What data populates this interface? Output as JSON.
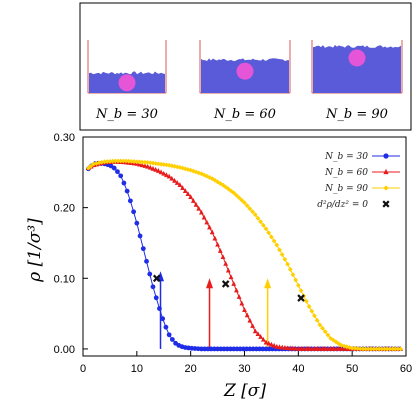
{
  "colors": {
    "nb30": "#1f2de6",
    "nb60": "#e81c1c",
    "nb90": "#ffcf00",
    "marker": "#111111",
    "polymer": "#5a5bd8",
    "particle": "#e455d8",
    "wall": "#d85a5a"
  },
  "snapshots": [
    {
      "label": "N_b = 30",
      "top_fraction": 0.35
    },
    {
      "label": "N_b = 60",
      "top_fraction": 0.6
    },
    {
      "label": "N_b = 90",
      "top_fraction": 0.85
    }
  ],
  "chart_data": {
    "type": "line",
    "xlabel": "Z [σ]",
    "ylabel": "ρ [1/σ³]",
    "xlim": [
      0,
      60
    ],
    "ylim": [
      -0.01,
      0.3
    ],
    "xticks": [
      "0",
      "10",
      "20",
      "30",
      "40",
      "50",
      "60"
    ],
    "yticks": [
      "0.00",
      "0.10",
      "0.20",
      "0.30"
    ],
    "grid": false,
    "legend_position": "top-right",
    "series": [
      {
        "name": "N_b = 30",
        "marker": "circle",
        "x": [
          1,
          2,
          3,
          4,
          5,
          6,
          7,
          8,
          9,
          10,
          11,
          12,
          13,
          14,
          15,
          16,
          17,
          18,
          19,
          20,
          22,
          24,
          26,
          28,
          30,
          35,
          40,
          45,
          50,
          55,
          59
        ],
        "y": [
          0.255,
          0.262,
          0.263,
          0.262,
          0.26,
          0.255,
          0.245,
          0.228,
          0.205,
          0.178,
          0.148,
          0.118,
          0.088,
          0.062,
          0.038,
          0.02,
          0.009,
          0.004,
          0.002,
          0.001,
          0.0,
          0.0,
          0.0,
          0.0,
          0.0,
          0.0,
          0.0,
          0.0,
          0.0,
          0.0,
          0.0
        ]
      },
      {
        "name": "N_b = 60",
        "marker": "triangle",
        "x": [
          1,
          2,
          4,
          6,
          8,
          10,
          12,
          14,
          16,
          18,
          20,
          22,
          24,
          26,
          28,
          30,
          32,
          34,
          36,
          38,
          40,
          45,
          50,
          55,
          59
        ],
        "y": [
          0.256,
          0.26,
          0.264,
          0.265,
          0.264,
          0.262,
          0.258,
          0.252,
          0.244,
          0.232,
          0.215,
          0.193,
          0.165,
          0.13,
          0.092,
          0.055,
          0.025,
          0.009,
          0.003,
          0.001,
          0.0,
          0.0,
          0.0,
          0.0,
          0.0
        ]
      },
      {
        "name": "N_b = 90",
        "marker": "diamond",
        "x": [
          1,
          2,
          4,
          6,
          8,
          10,
          12,
          14,
          16,
          18,
          20,
          22,
          24,
          26,
          28,
          30,
          32,
          34,
          36,
          38,
          40,
          42,
          44,
          46,
          48,
          50,
          52,
          54,
          56,
          59
        ],
        "y": [
          0.256,
          0.262,
          0.265,
          0.266,
          0.266,
          0.265,
          0.264,
          0.262,
          0.26,
          0.257,
          0.253,
          0.248,
          0.241,
          0.232,
          0.221,
          0.207,
          0.19,
          0.17,
          0.147,
          0.12,
          0.09,
          0.06,
          0.034,
          0.015,
          0.005,
          0.001,
          0.0,
          0.0,
          0.0,
          0.0
        ]
      },
      {
        "name": "d²ρ/dz² = 0",
        "marker": "cross",
        "x": [
          13.7,
          26.5,
          40.5
        ],
        "y": [
          0.1,
          0.092,
          0.072
        ]
      }
    ],
    "arrows": [
      {
        "x": 14.4,
        "y_from": 0.0,
        "y_to": 0.11,
        "color_key": "nb30"
      },
      {
        "x": 23.5,
        "y_from": 0.0,
        "y_to": 0.1,
        "color_key": "nb60"
      },
      {
        "x": 34.3,
        "y_from": 0.0,
        "y_to": 0.1,
        "color_key": "nb90"
      }
    ]
  }
}
